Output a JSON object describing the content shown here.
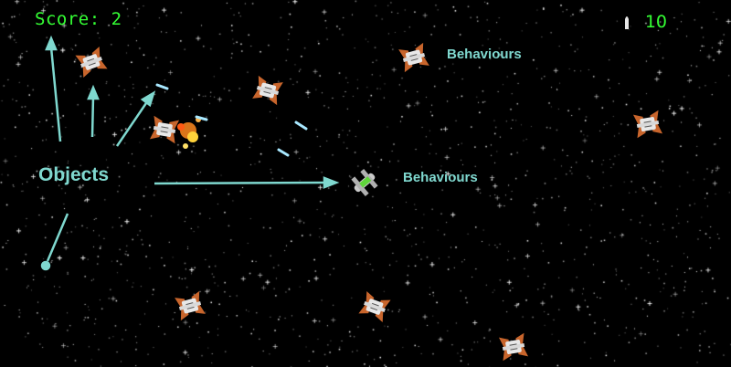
{
  "hud": {
    "score_text": "Score: 2",
    "ammo_count": "10",
    "hud_color": "#34ff34"
  },
  "annotations": {
    "objects_label": "Objects",
    "behaviours_label_1": "Behaviours",
    "behaviours_label_2": "Behaviours",
    "annotation_color": "#7fd8cf"
  },
  "icons": {
    "ammo": "bullet-icon",
    "enemy": "enemy-ship-icon",
    "player": "player-ship-icon"
  },
  "colors": {
    "enemy_hull": "#e8e8e8",
    "enemy_wing": "#c8652c",
    "player_hull": "#c9c9c9",
    "player_accent": "#5fd43a",
    "laser": "#a8e8ff",
    "explosion": "#ff8a1e"
  }
}
